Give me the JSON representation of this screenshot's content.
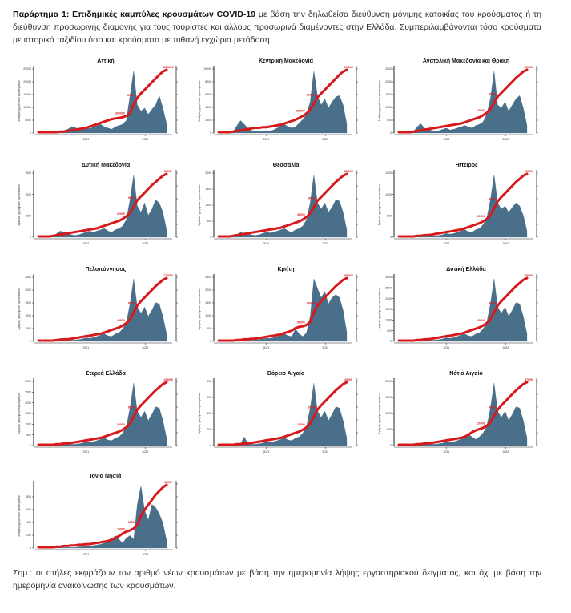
{
  "caption": {
    "bold": "Παράρτημα 1:  Επιδημικές καμπύλες κρουσμάτων COVID-19",
    "text": " με βάση την δηλωθείσα διεύθυνση μόνιμης κατοικίας του κρούσματος ή τη διεύθυνση προσωρινής διαμονής για τους τουρίστες και άλλους προσωρινά διαμένοντες στην Ελλάδα. Συμπεριλαμβάνονται τόσο κρούσματα με ιστορικό ταξιδίου όσο και κρούσματα με πιθανή εγχώρια μετάδοση."
  },
  "note": "Σημ.:  οι στήλες εκφράζουν τον αριθμό νέων κρουσμάτων με βάση την ημερομηνία λήψης εργαστηριακού δείγματος, και όχι με βάση την ημερομηνία ανακοίνωσης των κρουσμάτων.",
  "colors": {
    "bars": "#4a6f8a",
    "cumulative": "#d7191c",
    "axis": "#222222"
  },
  "chart_data": [
    {
      "type": "bar+line",
      "title": "Αττική",
      "ylabel": "Αριθμός ημερήσιων κρουσμάτων",
      "ylim": [
        0,
        25000
      ],
      "yticks": [
        0,
        5000,
        10000,
        15000,
        20000,
        25000
      ],
      "xticks": [
        "2021",
        "2022"
      ],
      "cum_max_label": "1186000",
      "cum_mid_labels": [
        "300000",
        "600000"
      ],
      "bar_profile": [
        0,
        0,
        0,
        0,
        1,
        2,
        3,
        4,
        6,
        10,
        9,
        6,
        8,
        9,
        7,
        10,
        12,
        14,
        10,
        8,
        6,
        10,
        12,
        14,
        20,
        60,
        100,
        45,
        35,
        40,
        30,
        38,
        45,
        60,
        40,
        15
      ],
      "cum_profile": [
        0,
        0,
        0,
        0,
        0,
        0,
        1,
        1,
        2,
        3,
        4,
        5,
        6,
        7,
        9,
        11,
        13,
        15,
        17,
        19,
        21,
        22,
        23,
        24,
        26,
        30,
        45,
        55,
        62,
        68,
        74,
        80,
        86,
        92,
        97,
        100
      ]
    },
    {
      "type": "bar+line",
      "title": "Κεντρική Μακεδονία",
      "ylabel": "Αριθμός ημερήσιων κρουσμάτων",
      "ylim": [
        0,
        10000
      ],
      "yticks": [
        0,
        2000,
        4000,
        6000,
        8000,
        10000
      ],
      "xticks": [
        "2021",
        "2022"
      ],
      "cum_max_label": "601000",
      "cum_mid_labels": [
        "150000",
        "300000"
      ],
      "bar_profile": [
        0,
        0,
        0,
        0,
        2,
        12,
        20,
        14,
        8,
        4,
        3,
        2,
        3,
        4,
        3,
        5,
        8,
        12,
        14,
        10,
        8,
        10,
        16,
        22,
        30,
        50,
        100,
        60,
        45,
        55,
        40,
        50,
        58,
        60,
        45,
        15
      ],
      "cum_profile": [
        0,
        0,
        0,
        0,
        1,
        2,
        3,
        4,
        5,
        6,
        7,
        7,
        8,
        8,
        9,
        10,
        11,
        12,
        14,
        16,
        18,
        20,
        23,
        26,
        30,
        36,
        46,
        56,
        62,
        68,
        74,
        80,
        86,
        92,
        97,
        100
      ]
    },
    {
      "type": "bar+line",
      "title": "Ανατολική Μακεδονία και Θράκη",
      "ylabel": "Αριθμός ημερήσιων κρουσμάτων",
      "ylim": [
        0,
        2500
      ],
      "yticks": [
        0,
        500,
        1000,
        1500,
        2000,
        2500
      ],
      "xticks": [
        "2021",
        "2022"
      ],
      "cum_max_label": "160000",
      "cum_mid_labels": [
        "40000",
        "80000"
      ],
      "bar_profile": [
        0,
        0,
        0,
        0,
        2,
        10,
        15,
        8,
        6,
        4,
        3,
        4,
        6,
        8,
        5,
        6,
        8,
        10,
        12,
        10,
        8,
        12,
        14,
        18,
        30,
        55,
        100,
        45,
        40,
        50,
        35,
        45,
        55,
        60,
        40,
        12
      ],
      "cum_profile": [
        0,
        0,
        0,
        0,
        1,
        2,
        3,
        4,
        5,
        6,
        7,
        8,
        9,
        10,
        11,
        12,
        13,
        14,
        16,
        18,
        20,
        22,
        24,
        27,
        31,
        37,
        47,
        57,
        63,
        69,
        75,
        81,
        87,
        92,
        97,
        100
      ]
    },
    {
      "type": "bar+line",
      "title": "Δυτική Μακεδονία",
      "ylabel": "Αριθμός ημερήσιων κρουσμάτων",
      "ylim": [
        0,
        1500
      ],
      "yticks": [
        0,
        500,
        1000,
        1500
      ],
      "xticks": [
        "2021",
        "2022"
      ],
      "cum_max_label": "85000",
      "cum_mid_labels": [
        "20000",
        "40000"
      ],
      "bar_profile": [
        0,
        0,
        0,
        0,
        1,
        6,
        10,
        8,
        6,
        4,
        3,
        4,
        6,
        8,
        10,
        8,
        10,
        12,
        14,
        10,
        8,
        12,
        14,
        18,
        28,
        60,
        100,
        50,
        40,
        55,
        35,
        45,
        60,
        55,
        40,
        12
      ],
      "cum_profile": [
        0,
        0,
        0,
        0,
        1,
        2,
        3,
        4,
        5,
        6,
        7,
        8,
        9,
        10,
        11,
        12,
        13,
        15,
        17,
        19,
        21,
        23,
        25,
        28,
        32,
        38,
        48,
        58,
        64,
        70,
        76,
        82,
        87,
        92,
        97,
        100
      ]
    },
    {
      "type": "bar+line",
      "title": "Θεσσαλία",
      "ylabel": "Αριθμός ημερήσιων κρουσμάτων",
      "ylim": [
        0,
        2000
      ],
      "yticks": [
        0,
        500,
        1000,
        1500,
        2000
      ],
      "xticks": [
        "2021",
        "2022"
      ],
      "cum_max_label": "180000",
      "cum_mid_labels": [
        "45000",
        "90000"
      ],
      "bar_profile": [
        0,
        0,
        0,
        0,
        1,
        4,
        8,
        6,
        5,
        4,
        3,
        4,
        6,
        8,
        7,
        8,
        10,
        12,
        14,
        10,
        8,
        12,
        14,
        18,
        28,
        55,
        100,
        55,
        45,
        55,
        40,
        48,
        60,
        58,
        40,
        12
      ],
      "cum_profile": [
        0,
        0,
        0,
        0,
        1,
        2,
        3,
        4,
        5,
        6,
        7,
        8,
        9,
        10,
        11,
        12,
        13,
        14,
        16,
        18,
        20,
        22,
        24,
        27,
        31,
        37,
        47,
        57,
        63,
        69,
        75,
        81,
        87,
        92,
        97,
        100
      ]
    },
    {
      "type": "bar+line",
      "title": "Ήπειρος",
      "ylabel": "Αριθμός ημερήσιων κρουσμάτων",
      "ylim": [
        0,
        1500
      ],
      "yticks": [
        0,
        500,
        1000,
        1500
      ],
      "xticks": [
        "2021",
        "2022"
      ],
      "cum_max_label": "89000",
      "cum_mid_labels": [
        "20000",
        "40000"
      ],
      "bar_profile": [
        0,
        0,
        0,
        0,
        1,
        2,
        4,
        3,
        3,
        2,
        2,
        3,
        4,
        6,
        5,
        6,
        8,
        10,
        12,
        9,
        8,
        12,
        14,
        20,
        30,
        60,
        100,
        55,
        45,
        50,
        40,
        48,
        55,
        50,
        35,
        10
      ],
      "cum_profile": [
        0,
        0,
        0,
        0,
        0,
        1,
        1,
        2,
        2,
        3,
        4,
        5,
        6,
        7,
        8,
        9,
        10,
        11,
        13,
        15,
        17,
        19,
        21,
        24,
        28,
        34,
        45,
        56,
        63,
        69,
        75,
        81,
        87,
        92,
        97,
        100
      ]
    },
    {
      "type": "bar+line",
      "title": "Πελοπόννησος",
      "ylabel": "Αριθμός ημερήσιων κρουσμάτων",
      "ylim": [
        0,
        2500
      ],
      "yticks": [
        0,
        500,
        1000,
        1500,
        2000,
        2500
      ],
      "xticks": [
        "2021",
        "2022"
      ],
      "cum_max_label": "170000",
      "cum_mid_labels": [
        "40000",
        "80000"
      ],
      "bar_profile": [
        0,
        0,
        4,
        0,
        1,
        3,
        5,
        4,
        3,
        2,
        2,
        3,
        4,
        6,
        5,
        6,
        8,
        10,
        12,
        9,
        8,
        12,
        14,
        20,
        30,
        60,
        100,
        55,
        45,
        55,
        40,
        50,
        62,
        60,
        40,
        12
      ],
      "cum_profile": [
        0,
        0,
        0,
        0,
        0,
        1,
        1,
        2,
        2,
        3,
        4,
        5,
        6,
        7,
        8,
        9,
        10,
        11,
        13,
        15,
        17,
        19,
        21,
        24,
        28,
        34,
        45,
        56,
        63,
        69,
        75,
        81,
        87,
        92,
        97,
        100
      ]
    },
    {
      "type": "bar+line",
      "title": "Κρήτη",
      "ylabel": "Αριθμός ημερήσιων κρουσμάτων",
      "ylim": [
        0,
        2500
      ],
      "yticks": [
        0,
        500,
        1000,
        1500,
        2000,
        2500
      ],
      "xticks": [
        "2021",
        "2022"
      ],
      "cum_max_label": "205000",
      "cum_mid_labels": [
        "50000",
        "100000"
      ],
      "bar_profile": [
        0,
        0,
        0,
        0,
        1,
        2,
        3,
        3,
        3,
        2,
        2,
        3,
        4,
        5,
        5,
        6,
        8,
        10,
        12,
        9,
        8,
        20,
        12,
        8,
        14,
        40,
        100,
        85,
        70,
        80,
        60,
        70,
        75,
        70,
        50,
        15
      ],
      "cum_profile": [
        0,
        0,
        0,
        0,
        0,
        1,
        1,
        2,
        2,
        3,
        3,
        4,
        5,
        6,
        7,
        8,
        9,
        10,
        12,
        14,
        16,
        20,
        22,
        23,
        25,
        30,
        45,
        56,
        63,
        69,
        75,
        81,
        87,
        92,
        97,
        100
      ]
    },
    {
      "type": "bar+line",
      "title": "Δυτική Ελλάδα",
      "ylabel": "Αριθμός ημερήσιων κρουσμάτων",
      "ylim": [
        0,
        3000
      ],
      "yticks": [
        0,
        500,
        1000,
        1500,
        2000,
        2500,
        3000
      ],
      "xticks": [
        "2021",
        "2022"
      ],
      "cum_max_label": "185000",
      "cum_mid_labels": [
        "45000",
        "90000"
      ],
      "bar_profile": [
        0,
        0,
        0,
        0,
        1,
        2,
        4,
        3,
        3,
        2,
        2,
        3,
        4,
        6,
        5,
        6,
        8,
        10,
        12,
        9,
        8,
        12,
        14,
        20,
        30,
        60,
        100,
        55,
        45,
        55,
        40,
        50,
        62,
        60,
        40,
        12
      ],
      "cum_profile": [
        0,
        0,
        0,
        0,
        0,
        1,
        1,
        2,
        2,
        3,
        4,
        5,
        6,
        7,
        8,
        9,
        10,
        11,
        13,
        15,
        17,
        19,
        21,
        24,
        28,
        34,
        45,
        56,
        63,
        69,
        75,
        81,
        87,
        92,
        97,
        100
      ]
    },
    {
      "type": "bar+line",
      "title": "Στερεά Ελλάδα",
      "ylabel": "Αριθμός ημερήσιων κρουσμάτων",
      "ylim": [
        0,
        3000
      ],
      "yticks": [
        0,
        500,
        1000,
        1500,
        2000,
        2500,
        3000
      ],
      "xticks": [
        "2021",
        "2022"
      ],
      "cum_max_label": "135000",
      "cum_mid_labels": [
        "30000",
        "60000"
      ],
      "bar_profile": [
        0,
        0,
        0,
        0,
        1,
        2,
        4,
        3,
        3,
        2,
        2,
        3,
        4,
        6,
        5,
        6,
        8,
        10,
        12,
        9,
        8,
        12,
        14,
        20,
        30,
        60,
        100,
        55,
        45,
        55,
        40,
        50,
        62,
        60,
        40,
        12
      ],
      "cum_profile": [
        0,
        0,
        0,
        0,
        0,
        1,
        1,
        2,
        2,
        3,
        4,
        5,
        6,
        7,
        8,
        9,
        10,
        11,
        13,
        15,
        17,
        19,
        21,
        24,
        28,
        34,
        45,
        56,
        63,
        69,
        75,
        81,
        87,
        92,
        97,
        100
      ]
    },
    {
      "type": "bar+line",
      "title": "Βόρειο Αιγαίο",
      "ylabel": "Αριθμός ημερήσιων κρουσμάτων",
      "ylim": [
        0,
        800
      ],
      "yticks": [
        0,
        200,
        400,
        600,
        800
      ],
      "xticks": [
        "2021",
        "2022"
      ],
      "cum_max_label": "45000",
      "cum_mid_labels": [
        "10000",
        "20000"
      ],
      "bar_profile": [
        0,
        0,
        0,
        0,
        1,
        2,
        3,
        14,
        3,
        2,
        2,
        3,
        4,
        6,
        5,
        6,
        8,
        10,
        12,
        9,
        8,
        12,
        14,
        20,
        30,
        60,
        100,
        55,
        45,
        55,
        40,
        50,
        62,
        60,
        40,
        12
      ],
      "cum_profile": [
        0,
        0,
        0,
        0,
        0,
        1,
        1,
        2,
        2,
        3,
        4,
        5,
        6,
        7,
        8,
        9,
        10,
        11,
        13,
        15,
        17,
        19,
        21,
        24,
        28,
        34,
        45,
        56,
        63,
        69,
        75,
        81,
        87,
        92,
        97,
        100
      ]
    },
    {
      "type": "bar+line",
      "title": "Νότιο Αιγαίο",
      "ylabel": "Αριθμός ημερήσιων κρουσμάτων",
      "ylim": [
        0,
        2000
      ],
      "yticks": [
        0,
        500,
        1000,
        1500,
        2000
      ],
      "xticks": [
        "2021",
        "2022"
      ],
      "cum_max_label": "87000",
      "cum_mid_labels": [
        "20000",
        "40000"
      ],
      "bar_profile": [
        0,
        0,
        0,
        0,
        1,
        2,
        3,
        3,
        3,
        2,
        2,
        3,
        4,
        6,
        5,
        6,
        8,
        10,
        14,
        18,
        14,
        10,
        14,
        20,
        30,
        60,
        100,
        55,
        45,
        55,
        40,
        50,
        62,
        60,
        40,
        12
      ],
      "cum_profile": [
        0,
        0,
        0,
        0,
        0,
        1,
        1,
        2,
        2,
        3,
        4,
        5,
        6,
        7,
        8,
        9,
        10,
        11,
        13,
        16,
        20,
        23,
        25,
        27,
        30,
        36,
        46,
        56,
        63,
        69,
        75,
        81,
        87,
        92,
        97,
        100
      ]
    },
    {
      "type": "bar+line",
      "title": "Ιόνια Νησιά",
      "ylabel": "Αριθμός ημερήσιων κρουσμάτων",
      "ylim": [
        0,
        1000
      ],
      "yticks": [
        0,
        200,
        400,
        600,
        800
      ],
      "xticks": [
        "2021",
        "2022"
      ],
      "cum_max_label": "58000",
      "cum_mid_labels": [
        "15000",
        "30000"
      ],
      "bar_profile": [
        0,
        0,
        0,
        0,
        0,
        1,
        1,
        1,
        1,
        1,
        1,
        2,
        2,
        3,
        3,
        4,
        5,
        6,
        8,
        10,
        14,
        20,
        14,
        8,
        16,
        20,
        14,
        70,
        100,
        60,
        45,
        70,
        65,
        55,
        40,
        12
      ],
      "cum_profile": [
        0,
        0,
        0,
        0,
        0,
        1,
        1,
        2,
        2,
        3,
        3,
        4,
        4,
        5,
        5,
        6,
        7,
        8,
        9,
        10,
        12,
        15,
        18,
        22,
        25,
        27,
        30,
        36,
        50,
        60,
        68,
        76,
        84,
        90,
        96,
        100
      ]
    }
  ]
}
